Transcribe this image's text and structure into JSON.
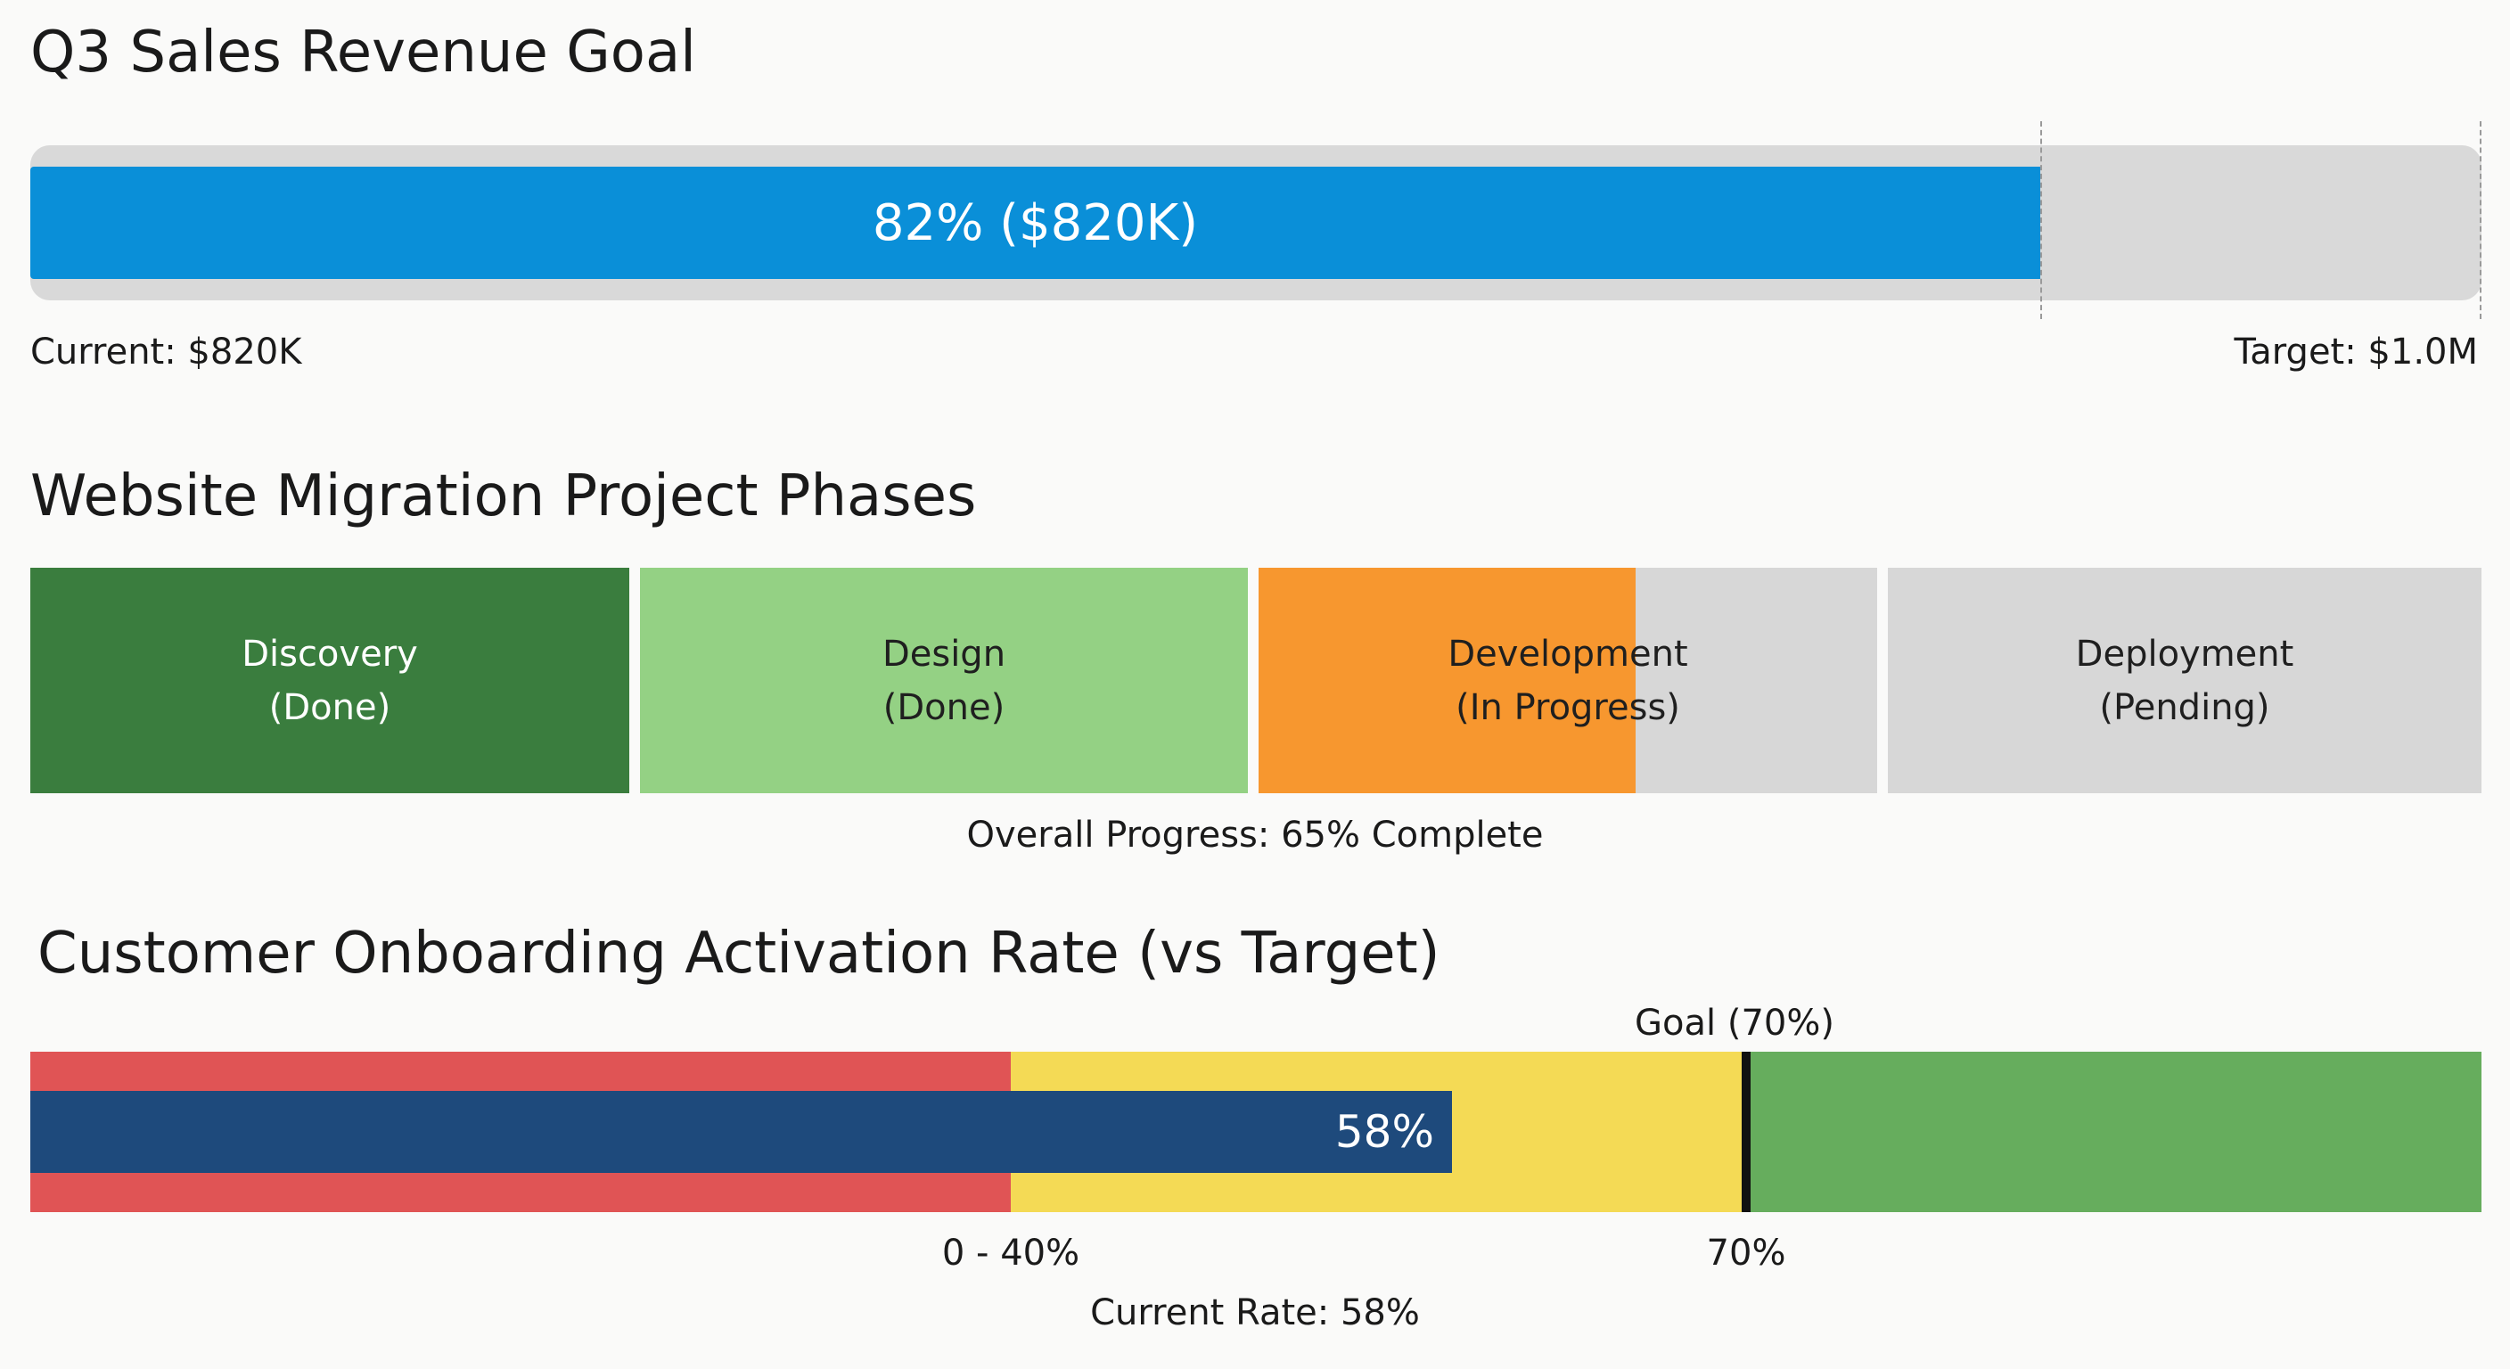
{
  "chart_data": [
    {
      "type": "bar",
      "title": "Q3 Sales Revenue Goal",
      "orientation": "horizontal",
      "progress_percent": 82,
      "value_label": "82% ($820K)",
      "current_label": "Current: $820K",
      "target_label": "Target: $1.0M",
      "colors": {
        "fill": "#0a8fd8",
        "track": "#d9d9d9",
        "text": "#ffffff"
      }
    },
    {
      "type": "bar",
      "title": "Website Migration Project Phases",
      "phases": [
        {
          "name": "Discovery",
          "status": "(Done)",
          "progress_percent": 100,
          "color": "#3a7d3e",
          "text_color": "#ffffff"
        },
        {
          "name": "Design",
          "status": "(Done)",
          "progress_percent": 100,
          "color": "#94d184",
          "text_color": "#1f1f1f"
        },
        {
          "name": "Development",
          "status": "(In Progress)",
          "progress_percent": 61,
          "color": "#f7972f",
          "text_color": "#1f1f1f"
        },
        {
          "name": "Deployment",
          "status": "(Pending)",
          "progress_percent": 0,
          "color": "#d7d7d7",
          "text_color": "#1f1f1f"
        }
      ],
      "summary_label": "Overall Progress: 65% Complete",
      "overall_percent": 65
    },
    {
      "type": "bar",
      "title": "Customer Onboarding Activation Rate (vs Target)",
      "subtype": "bullet",
      "xlim": [
        0,
        100
      ],
      "bands": [
        {
          "from": 0,
          "to": 40,
          "color": "#e05455"
        },
        {
          "from": 40,
          "to": 70,
          "color": "#f4da55"
        },
        {
          "from": 70,
          "to": 100,
          "color": "#66ad5d"
        }
      ],
      "value": 58,
      "value_label": "58%",
      "bar_color": "#1e4a7c",
      "goal": 70,
      "goal_label": "Goal (70%)",
      "tick_labels": [
        {
          "value": 40,
          "label": "0 - 40%"
        },
        {
          "value": 70,
          "label": "70%"
        }
      ],
      "current_label": "Current Rate: 58%"
    }
  ]
}
